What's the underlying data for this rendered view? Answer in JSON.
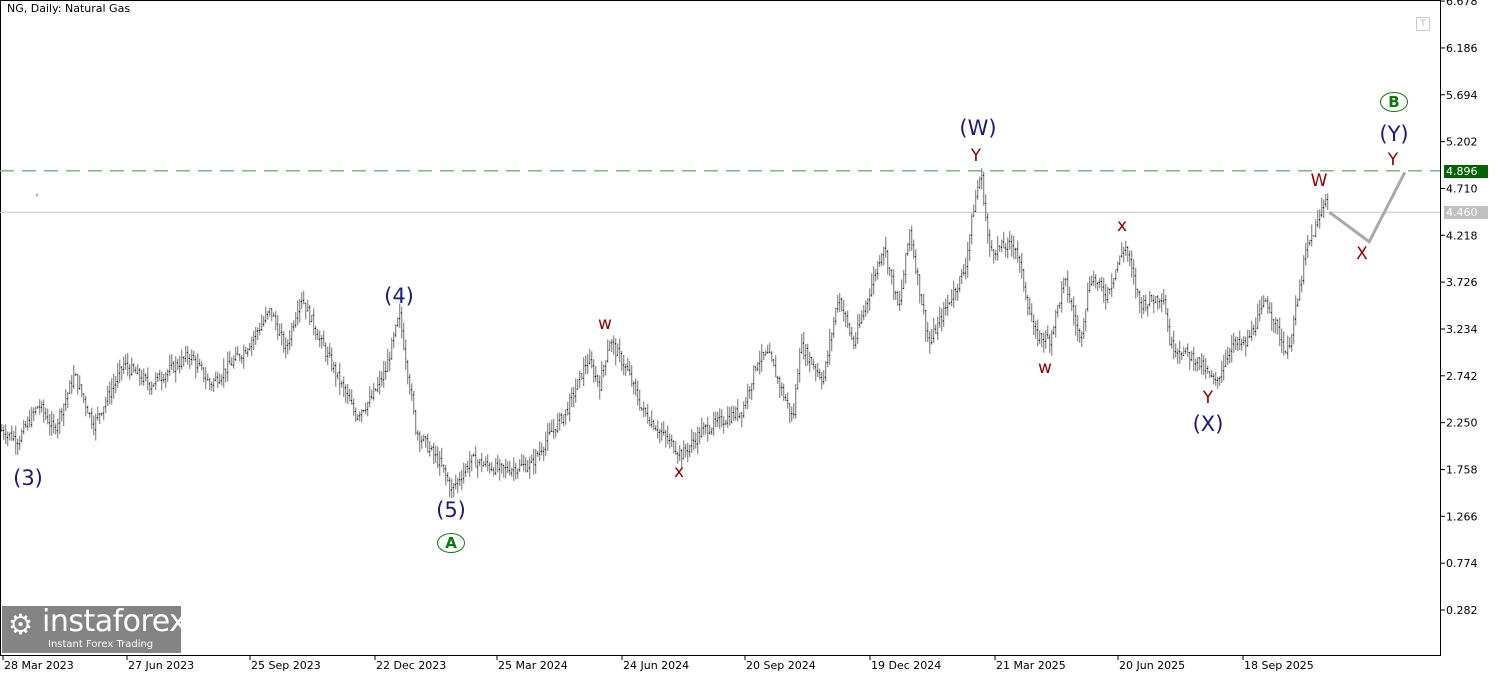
{
  "header": {
    "title": "NG, Daily:  Natural Gas",
    "t_icon": "T"
  },
  "watermark": {
    "brand": "instaforex",
    "tagline": "Instant Forex Trading",
    "icon": "gear-person-icon"
  },
  "colors": {
    "bars": "#707070",
    "level_line": "#7fb77f",
    "level_badge": "#006400",
    "current_badge": "#c0c0c0",
    "wave_primary": "#1a1a7a",
    "wave_minor": "#8b0000",
    "wave_circle": "#0a7a0a",
    "projection": "#a9a9a9"
  },
  "chart_data": {
    "type": "bar",
    "subtype": "ohlc",
    "title": "NG, Daily:  Natural Gas",
    "y_ticks": [
      "6.678",
      "6.186",
      "5.694",
      "5.202",
      "4.710",
      "4.218",
      "3.726",
      "3.234",
      "2.742",
      "2.250",
      "1.758",
      "1.266",
      "0.774",
      "0.282"
    ],
    "ylim": [
      0.282,
      6.678
    ],
    "x_ticks": [
      "28 Mar 2023",
      "27 Jun 2023",
      "25 Sep 2023",
      "22 Dec 2023",
      "25 Mar 2024",
      "24 Jun 2024",
      "20 Sep 2024",
      "19 Dec 2024",
      "21 Mar 2025",
      "20 Jun 2025",
      "18 Sep 2025"
    ],
    "grid": false,
    "levels": [
      {
        "price": 4.896,
        "label": "4.896",
        "style": "dashed"
      },
      {
        "price": 4.46,
        "label": "4.460",
        "style": "solid"
      }
    ],
    "price_path": [
      [
        "2023-03-28",
        2.17
      ],
      [
        "2023-04-09",
        2.07
      ],
      [
        "2023-04-24",
        2.44
      ],
      [
        "2023-05-05",
        2.17
      ],
      [
        "2023-05-20",
        2.75
      ],
      [
        "2023-06-03",
        2.23
      ],
      [
        "2023-06-25",
        2.86
      ],
      [
        "2023-07-14",
        2.65
      ],
      [
        "2023-08-12",
        2.96
      ],
      [
        "2023-08-27",
        2.65
      ],
      [
        "2023-09-21",
        3.01
      ],
      [
        "2023-10-10",
        3.43
      ],
      [
        "2023-10-21",
        3.01
      ],
      [
        "2023-11-01",
        3.59
      ],
      [
        "2023-11-15",
        3.12
      ],
      [
        "2023-12-11",
        2.33
      ],
      [
        "2023-12-22",
        2.49
      ],
      [
        "2024-01-02",
        2.8
      ],
      [
        "2024-01-12",
        3.38
      ],
      [
        "2024-01-20",
        2.59
      ],
      [
        "2024-01-24",
        2.17
      ],
      [
        "2024-02-11",
        1.81
      ],
      [
        "2024-02-19",
        1.54
      ],
      [
        "2024-03-04",
        1.86
      ],
      [
        "2024-03-26",
        1.75
      ],
      [
        "2024-04-17",
        1.81
      ],
      [
        "2024-04-28",
        2.07
      ],
      [
        "2024-05-13",
        2.38
      ],
      [
        "2024-05-28",
        2.91
      ],
      [
        "2024-06-06",
        2.65
      ],
      [
        "2024-06-13",
        3.12
      ],
      [
        "2024-06-26",
        2.8
      ],
      [
        "2024-07-07",
        2.38
      ],
      [
        "2024-07-22",
        2.12
      ],
      [
        "2024-08-05",
        1.91
      ],
      [
        "2024-08-20",
        2.17
      ],
      [
        "2024-09-18",
        2.38
      ],
      [
        "2024-09-29",
        2.91
      ],
      [
        "2024-10-07",
        2.96
      ],
      [
        "2024-10-25",
        2.28
      ],
      [
        "2024-10-30",
        3.07
      ],
      [
        "2024-11-16",
        2.7
      ],
      [
        "2024-11-27",
        3.59
      ],
      [
        "2024-12-08",
        3.07
      ],
      [
        "2024-12-30",
        4.12
      ],
      [
        "2025-01-10",
        3.43
      ],
      [
        "2025-01-18",
        4.27
      ],
      [
        "2025-02-01",
        3.07
      ],
      [
        "2025-02-16",
        3.54
      ],
      [
        "2025-02-27",
        3.85
      ],
      [
        "2025-03-06",
        4.54
      ],
      [
        "2025-03-11",
        4.88
      ],
      [
        "2025-03-17",
        4.06
      ],
      [
        "2025-04-05",
        4.12
      ],
      [
        "2025-04-19",
        3.17
      ],
      [
        "2025-04-30",
        3.12
      ],
      [
        "2025-05-11",
        3.75
      ],
      [
        "2025-05-22",
        3.12
      ],
      [
        "2025-05-30",
        3.8
      ],
      [
        "2025-06-10",
        3.59
      ],
      [
        "2025-06-24",
        4.12
      ],
      [
        "2025-07-05",
        3.49
      ],
      [
        "2025-07-22",
        3.59
      ],
      [
        "2025-07-27",
        3.07
      ],
      [
        "2025-08-15",
        2.91
      ],
      [
        "2025-08-29",
        2.65
      ],
      [
        "2025-09-09",
        3.07
      ],
      [
        "2025-09-20",
        3.07
      ],
      [
        "2025-10-05",
        3.54
      ],
      [
        "2025-10-20",
        2.96
      ],
      [
        "2025-10-28",
        3.54
      ],
      [
        "2025-11-03",
        4.06
      ],
      [
        "2025-11-11",
        4.33
      ],
      [
        "2025-11-18",
        4.67
      ],
      [
        "2025-11-20",
        4.46
      ]
    ],
    "projection": [
      [
        "2025-11-20",
        4.46
      ],
      [
        "2025-12-19",
        4.15
      ],
      [
        "2026-01-14",
        4.88
      ]
    ],
    "wave_labels": [
      {
        "text": "(3)",
        "cls": "navy"
      },
      {
        "text": "(4)",
        "cls": "navy"
      },
      {
        "text": "(5)",
        "cls": "navy"
      },
      {
        "text": "A",
        "cls": "circ"
      },
      {
        "text": "w",
        "cls": "red"
      },
      {
        "text": "x",
        "cls": "red"
      },
      {
        "text": "(W)",
        "cls": "navy"
      },
      {
        "text": "Y",
        "cls": "red"
      },
      {
        "text": "w",
        "cls": "red"
      },
      {
        "text": "x",
        "cls": "red"
      },
      {
        "text": "Y",
        "cls": "red"
      },
      {
        "text": "(X)",
        "cls": "navy"
      },
      {
        "text": "W",
        "cls": "red"
      },
      {
        "text": "X",
        "cls": "red"
      },
      {
        "text": "Y",
        "cls": "red"
      },
      {
        "text": "(Y)",
        "cls": "navy"
      },
      {
        "text": "B",
        "cls": "circ"
      }
    ]
  }
}
